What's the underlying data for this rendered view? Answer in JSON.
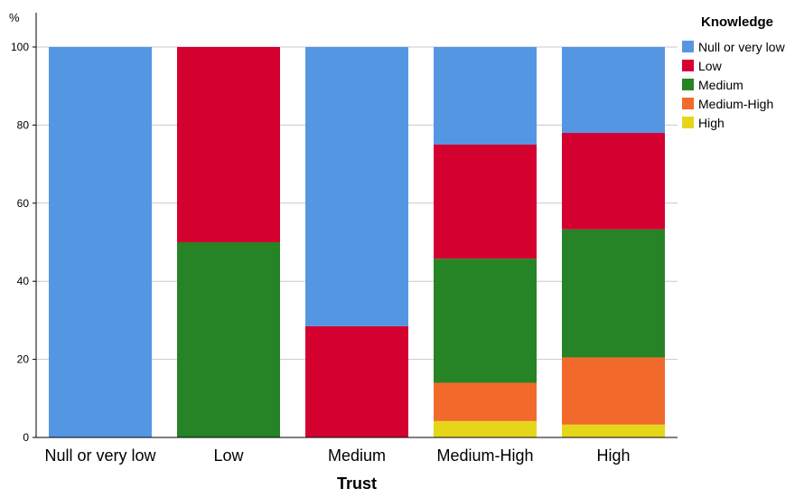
{
  "chart_data": {
    "type": "bar",
    "stacked": true,
    "categories": [
      "Null or very low",
      "Low",
      "Medium",
      "Medium-High",
      "High"
    ],
    "xlabel": "Trust",
    "ylabel": "%",
    "ylim": [
      0,
      100
    ],
    "yticks": [
      0,
      20,
      40,
      60,
      80,
      100
    ],
    "grid": true,
    "legend": {
      "title": "Knowledge",
      "position": "top-right"
    },
    "series": [
      {
        "name": "High",
        "color": "#e6d619",
        "values": [
          0,
          0,
          0,
          4.2,
          3.3
        ]
      },
      {
        "name": "Medium-High",
        "color": "#f26a2b",
        "values": [
          0,
          0,
          0,
          9.8,
          17.2
        ]
      },
      {
        "name": "Medium",
        "color": "#268326",
        "values": [
          0,
          50,
          0,
          31.8,
          32.8
        ]
      },
      {
        "name": "Low",
        "color": "#d40030",
        "values": [
          0,
          50,
          28.5,
          29.2,
          24.7
        ]
      },
      {
        "name": "Null or very low",
        "color": "#5596e3",
        "values": [
          100,
          0,
          71.5,
          25,
          22
        ]
      }
    ],
    "legend_order": [
      "Null or very low",
      "Low",
      "Medium",
      "Medium-High",
      "High"
    ]
  }
}
